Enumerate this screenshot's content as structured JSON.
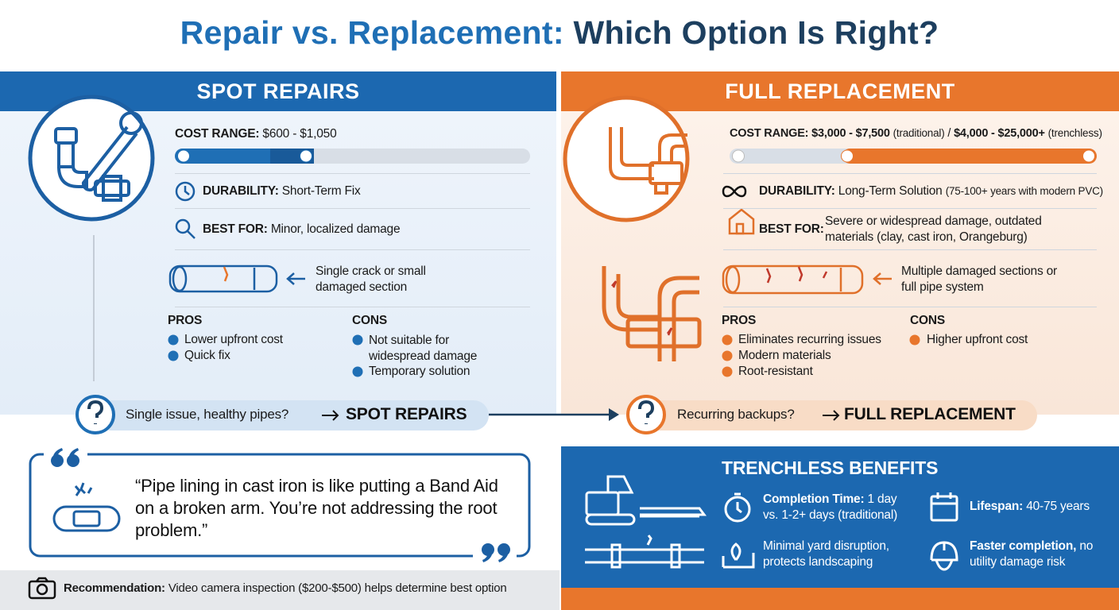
{
  "title": {
    "part1": "Repair vs. Replacement:",
    "part2": "Which Option Is Right?"
  },
  "spot": {
    "heading": "SPOT REPAIRS",
    "cost_label": "COST RANGE:",
    "cost_value": "$600 - $1,050",
    "durability_label": "DURABILITY:",
    "durability_value": "Short-Term Fix",
    "best_label": "BEST FOR:",
    "best_value": "Minor, localized damage",
    "damage_note": "Single crack or small damaged section",
    "pros_heading": "PROS",
    "pros": [
      "Lower upfront cost",
      "Quick fix"
    ],
    "cons_heading": "CONS",
    "cons": [
      "Not suitable for widespread damage",
      "Temporary solution"
    ],
    "decision_question": "Single issue, healthy pipes?",
    "decision_answer": "SPOT REPAIRS"
  },
  "full": {
    "heading": "FULL REPLACEMENT",
    "cost_label": "COST RANGE:",
    "cost_value": "$3,000 - $7,500",
    "cost_note": "(traditional)",
    "cost_separator": "/",
    "cost_value2": "$4,000 - $25,000+",
    "cost_note2": "(trenchless)",
    "durability_label": "DURABILITY:",
    "durability_value": "Long-Term Solution",
    "durability_note": "(75-100+ years with modern PVC)",
    "best_label": "BEST FOR:",
    "best_value": "Severe or widespread damage, outdated materials (clay, cast iron, Orangeburg)",
    "damage_note": "Multiple damaged sections or full pipe system",
    "pros_heading": "PROS",
    "pros": [
      "Eliminates recurring issues",
      "Modern materials",
      "Root-resistant"
    ],
    "cons_heading": "CONS",
    "cons": [
      "Higher upfront cost"
    ],
    "decision_question": "Recurring backups?",
    "decision_answer": "FULL REPLACEMENT"
  },
  "quote": {
    "text": "“Pipe lining in cast iron is like putting a Band Aid on a broken arm. You’re not addressing the root problem.”"
  },
  "recommendation": {
    "label": "Recommendation:",
    "text": "Video camera inspection ($200-$500) helps determine best option"
  },
  "trenchless": {
    "heading": "TRENCHLESS BENEFITS",
    "items": [
      {
        "label": "Completion Time:",
        "text": "1 day vs. 1-2+ days (traditional)"
      },
      {
        "label": "Lifespan:",
        "text": "40-75 years"
      },
      {
        "text": "Minimal yard disruption, protects landscaping"
      },
      {
        "label": "Faster completion,",
        "text": "no utility damage risk"
      }
    ]
  }
}
